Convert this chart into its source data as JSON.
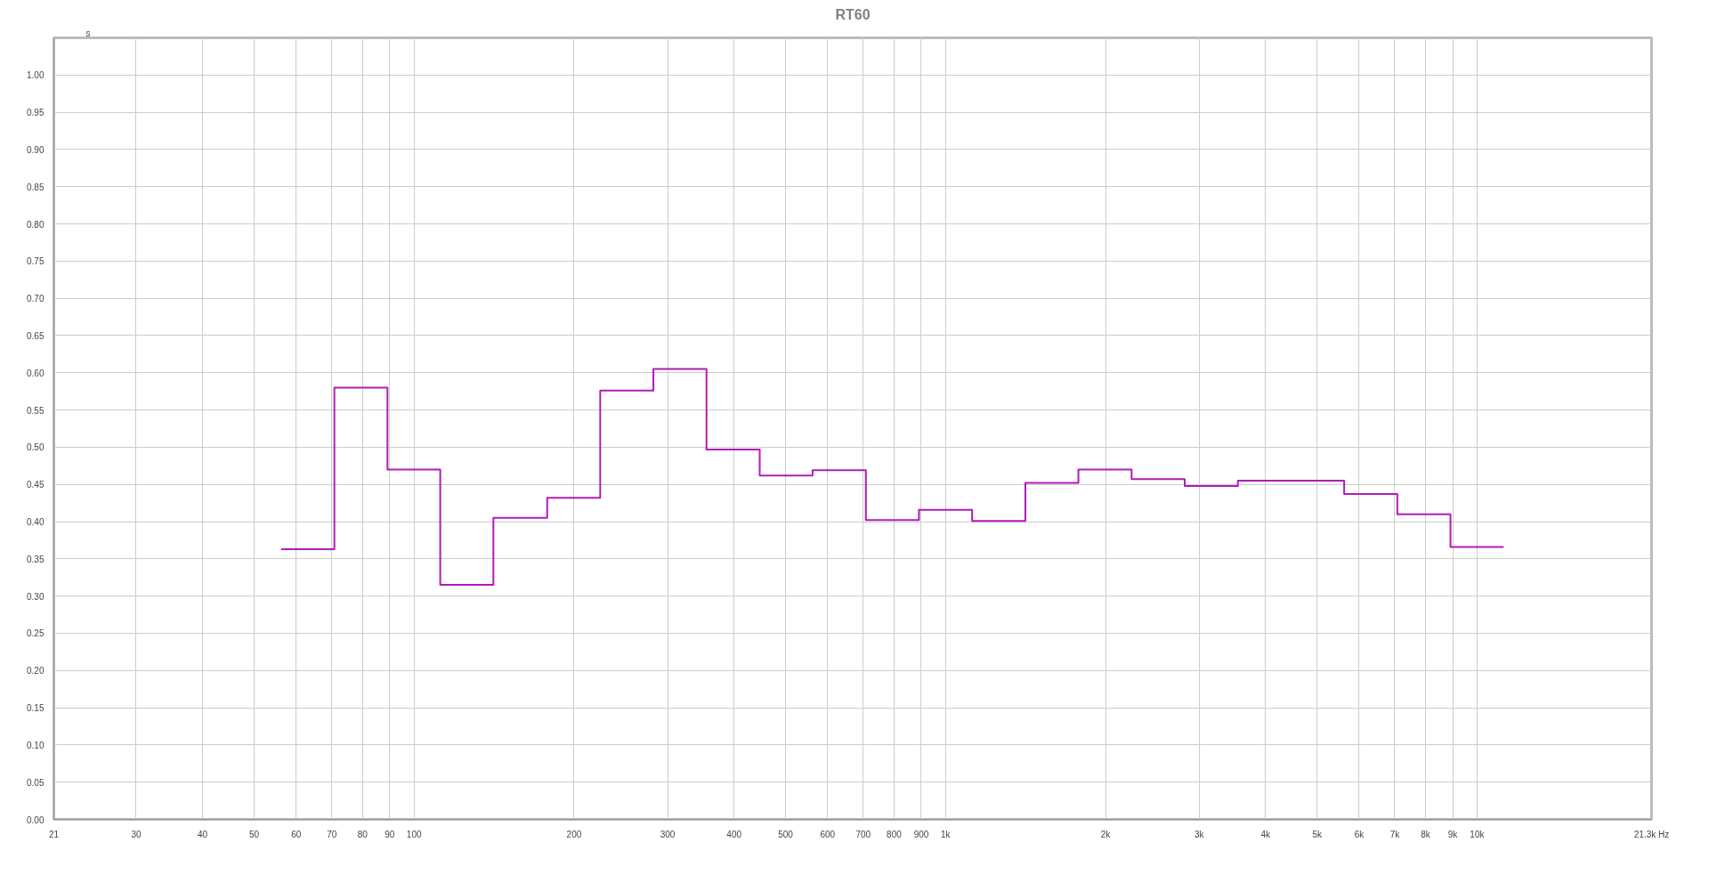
{
  "chart_data": {
    "type": "step",
    "title": "RT60",
    "ylabel": "s",
    "x": [
      56.2,
      70.8,
      89.1,
      112,
      141,
      178,
      224,
      282,
      355,
      447,
      562,
      708,
      891,
      1122,
      1413,
      1778,
      2239,
      2818,
      3548,
      4467,
      5623,
      7079,
      8913,
      11220
    ],
    "series": [
      {
        "color": "#b01cb8",
        "values": [
          0.363,
          0.58,
          0.47,
          0.315,
          0.405,
          0.432,
          0.576,
          0.605,
          0.497,
          0.462,
          0.469,
          0.402,
          0.416,
          0.401,
          0.452,
          0.47,
          0.457,
          0.448,
          0.455,
          0.455,
          0.437,
          0.41,
          0.366,
          0.366
        ]
      }
    ],
    "log": "x",
    "xlim": [
      21,
      21300
    ],
    "xticks": [
      21,
      30,
      40,
      50,
      60,
      70,
      80,
      90,
      100,
      200,
      300,
      400,
      500,
      600,
      700,
      800,
      900,
      {
        "value": 1000,
        "label": "1k"
      },
      {
        "value": 2000,
        "label": "2k"
      },
      {
        "value": 3000,
        "label": "3k"
      },
      {
        "value": 4000,
        "label": "4k"
      },
      {
        "value": 5000,
        "label": "5k"
      },
      {
        "value": 6000,
        "label": "6k"
      },
      {
        "value": 7000,
        "label": "7k"
      },
      {
        "value": 8000,
        "label": "8k"
      },
      {
        "value": 9000,
        "label": "9k"
      },
      {
        "value": 10000,
        "label": "10k"
      },
      {
        "value": 21300,
        "label": "21.3k Hz"
      }
    ],
    "ylim": [
      0,
      1.05
    ],
    "yticks": [
      {
        "value": 0,
        "label": "0.00"
      },
      {
        "value": 0.05,
        "label": "0.05"
      },
      {
        "value": 0.1,
        "label": "0.10"
      },
      {
        "value": 0.15,
        "label": "0.15"
      },
      {
        "value": 0.2,
        "label": "0.20"
      },
      {
        "value": 0.25,
        "label": "0.25"
      },
      {
        "value": 0.3,
        "label": "0.30"
      },
      {
        "value": 0.35,
        "label": "0.35"
      },
      {
        "value": 0.4,
        "label": "0.40"
      },
      {
        "value": 0.45,
        "label": "0.45"
      },
      {
        "value": 0.5,
        "label": "0.50"
      },
      {
        "value": 0.55,
        "label": "0.55"
      },
      {
        "value": 0.6,
        "label": "0.60"
      },
      {
        "value": 0.65,
        "label": "0.65"
      },
      {
        "value": 0.7,
        "label": "0.70"
      },
      {
        "value": 0.75,
        "label": "0.75"
      },
      {
        "value": 0.8,
        "label": "0.80"
      },
      {
        "value": 0.85,
        "label": "0.85"
      },
      {
        "value": 0.9,
        "label": "0.90"
      },
      {
        "value": 0.95,
        "label": "0.95"
      },
      {
        "value": 1.0,
        "label": "1.00"
      }
    ],
    "grid": true
  }
}
